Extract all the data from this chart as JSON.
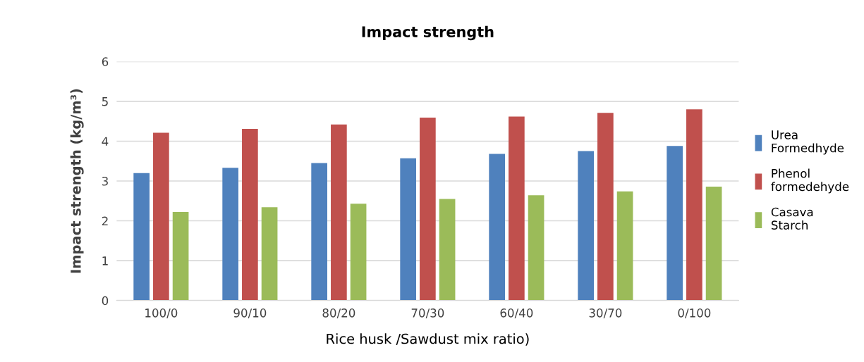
{
  "chart_data": {
    "type": "bar",
    "title": "Impact strength",
    "xlabel": "Rice husk /Sawdust mix ratio)",
    "ylabel": "Impact strength (kg/m³)",
    "categories": [
      "100/0",
      "90/10",
      "80/20",
      "70/30",
      "60/40",
      "30/70",
      "0/100"
    ],
    "series": [
      {
        "name": "Urea Formedhyde",
        "color": "#4f81bd",
        "values": [
          3.2,
          3.33,
          3.45,
          3.57,
          3.68,
          3.75,
          3.88
        ]
      },
      {
        "name": "Phenol formedehyde",
        "color": "#c0504d",
        "values": [
          4.21,
          4.31,
          4.42,
          4.59,
          4.62,
          4.71,
          4.8
        ]
      },
      {
        "name": "Casava Starch",
        "color": "#9bbb59",
        "values": [
          2.22,
          2.34,
          2.43,
          2.55,
          2.64,
          2.74,
          2.86
        ]
      }
    ],
    "ylim": [
      0,
      6
    ],
    "yticks": [
      0,
      1,
      2,
      3,
      4,
      5,
      6
    ],
    "grid": "y",
    "legend": "right"
  }
}
